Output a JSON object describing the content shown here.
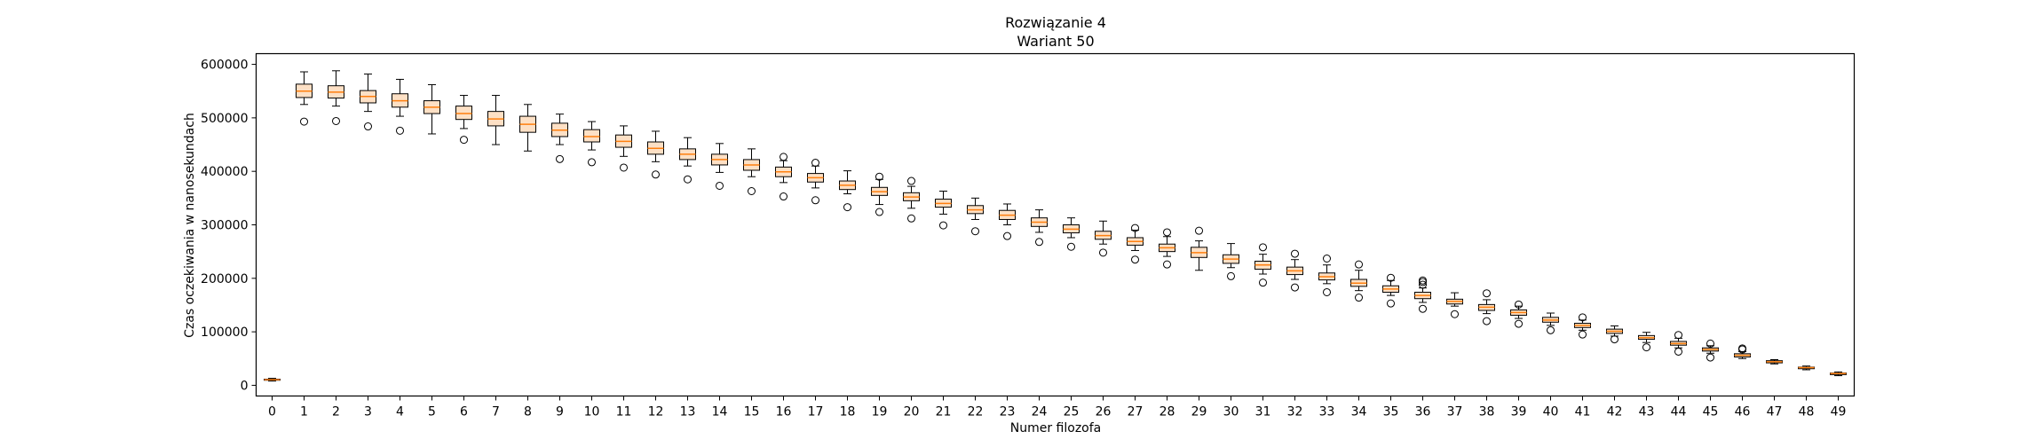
{
  "chart_data": {
    "type": "boxplot",
    "title": "Rozwiązanie 4",
    "subtitle": "Wariant 50",
    "xlabel": "Numer filozofa",
    "ylabel": "Czas oczekiwania w nanosekundach",
    "ylim": [
      -20000,
      620000
    ],
    "yticks": [
      0,
      100000,
      200000,
      300000,
      400000,
      500000,
      600000
    ],
    "ytick_labels": [
      "0",
      "100000",
      "200000",
      "300000",
      "400000",
      "500000",
      "600000"
    ],
    "categories": [
      "0",
      "1",
      "2",
      "3",
      "4",
      "5",
      "6",
      "7",
      "8",
      "9",
      "10",
      "11",
      "12",
      "13",
      "14",
      "15",
      "16",
      "17",
      "18",
      "19",
      "20",
      "21",
      "22",
      "23",
      "24",
      "25",
      "26",
      "27",
      "28",
      "29",
      "30",
      "31",
      "32",
      "33",
      "34",
      "35",
      "36",
      "37",
      "38",
      "39",
      "40",
      "41",
      "42",
      "43",
      "44",
      "45",
      "46",
      "47",
      "48",
      "49"
    ],
    "grid": false,
    "colors": {
      "box_edge": "#000000",
      "median": "#ff7f0e",
      "box_fill": "#fde0c5"
    },
    "boxes": [
      {
        "whislo": 8000,
        "q1": 9500,
        "med": 10500,
        "q3": 11500,
        "whishi": 13000,
        "fliers": []
      },
      {
        "whislo": 525000,
        "q1": 538000,
        "med": 550000,
        "q3": 563000,
        "whishi": 586000,
        "fliers": [
          493000
        ]
      },
      {
        "whislo": 522000,
        "q1": 537000,
        "med": 548000,
        "q3": 560000,
        "whishi": 588000,
        "fliers": [
          494000
        ]
      },
      {
        "whislo": 512000,
        "q1": 528000,
        "med": 540000,
        "q3": 551000,
        "whishi": 582000,
        "fliers": [
          484000
        ]
      },
      {
        "whislo": 503000,
        "q1": 520000,
        "med": 532000,
        "q3": 545000,
        "whishi": 572000,
        "fliers": [
          476000
        ]
      },
      {
        "whislo": 470000,
        "q1": 508000,
        "med": 520000,
        "q3": 532000,
        "whishi": 562000,
        "fliers": []
      },
      {
        "whislo": 480000,
        "q1": 497000,
        "med": 508000,
        "q3": 522000,
        "whishi": 542000,
        "fliers": [
          459000
        ]
      },
      {
        "whislo": 450000,
        "q1": 485000,
        "med": 498000,
        "q3": 512000,
        "whishi": 542000,
        "fliers": []
      },
      {
        "whislo": 438000,
        "q1": 473000,
        "med": 488000,
        "q3": 503000,
        "whishi": 525000,
        "fliers": []
      },
      {
        "whislo": 450000,
        "q1": 465000,
        "med": 477000,
        "q3": 490000,
        "whishi": 507000,
        "fliers": [
          423000
        ]
      },
      {
        "whislo": 440000,
        "q1": 455000,
        "med": 465000,
        "q3": 478000,
        "whishi": 493000,
        "fliers": [
          417000
        ]
      },
      {
        "whislo": 428000,
        "q1": 445000,
        "med": 456000,
        "q3": 468000,
        "whishi": 485000,
        "fliers": [
          407000
        ]
      },
      {
        "whislo": 418000,
        "q1": 432000,
        "med": 443000,
        "q3": 455000,
        "whishi": 475000,
        "fliers": [
          394000
        ]
      },
      {
        "whislo": 410000,
        "q1": 422000,
        "med": 432000,
        "q3": 442000,
        "whishi": 463000,
        "fliers": [
          385000
        ]
      },
      {
        "whislo": 398000,
        "q1": 412000,
        "med": 422000,
        "q3": 432000,
        "whishi": 452000,
        "fliers": [
          373000
        ]
      },
      {
        "whislo": 390000,
        "q1": 402000,
        "med": 412000,
        "q3": 422000,
        "whishi": 442000,
        "fliers": [
          363000
        ]
      },
      {
        "whislo": 379000,
        "q1": 390000,
        "med": 399000,
        "q3": 408000,
        "whishi": 420000,
        "fliers": [
          353000,
          427000
        ]
      },
      {
        "whislo": 369000,
        "q1": 380000,
        "med": 388000,
        "q3": 396000,
        "whishi": 410000,
        "fliers": [
          346000,
          416000
        ]
      },
      {
        "whislo": 358000,
        "q1": 366000,
        "med": 374000,
        "q3": 382000,
        "whishi": 401000,
        "fliers": [
          333000
        ]
      },
      {
        "whislo": 338000,
        "q1": 355000,
        "med": 362000,
        "q3": 370000,
        "whishi": 385000,
        "fliers": [
          324000,
          390000
        ]
      },
      {
        "whislo": 331000,
        "q1": 345000,
        "med": 352000,
        "q3": 360000,
        "whishi": 372000,
        "fliers": [
          312000,
          382000
        ]
      },
      {
        "whislo": 320000,
        "q1": 333000,
        "med": 340000,
        "q3": 348000,
        "whishi": 363000,
        "fliers": [
          299000
        ]
      },
      {
        "whislo": 310000,
        "q1": 321000,
        "med": 328000,
        "q3": 336000,
        "whishi": 350000,
        "fliers": [
          288000
        ]
      },
      {
        "whislo": 300000,
        "q1": 310000,
        "med": 318000,
        "q3": 327000,
        "whishi": 339000,
        "fliers": [
          279000
        ]
      },
      {
        "whislo": 286000,
        "q1": 297000,
        "med": 305000,
        "q3": 313000,
        "whishi": 328000,
        "fliers": [
          268000
        ]
      },
      {
        "whislo": 276000,
        "q1": 285000,
        "med": 292000,
        "q3": 300000,
        "whishi": 313000,
        "fliers": [
          259000
        ]
      },
      {
        "whislo": 264000,
        "q1": 273000,
        "med": 280000,
        "q3": 288000,
        "whishi": 307000,
        "fliers": [
          248000
        ]
      },
      {
        "whislo": 252000,
        "q1": 262000,
        "med": 269000,
        "q3": 276000,
        "whishi": 290000,
        "fliers": [
          235000,
          294000
        ]
      },
      {
        "whislo": 241000,
        "q1": 250000,
        "med": 257000,
        "q3": 264000,
        "whishi": 278000,
        "fliers": [
          226000,
          286000
        ]
      },
      {
        "whislo": 215000,
        "q1": 239000,
        "med": 248000,
        "q3": 258000,
        "whishi": 270000,
        "fliers": [
          289000
        ]
      },
      {
        "whislo": 220000,
        "q1": 228000,
        "med": 236000,
        "q3": 244000,
        "whishi": 265000,
        "fliers": [
          204000
        ]
      },
      {
        "whislo": 208000,
        "q1": 217000,
        "med": 225000,
        "q3": 232000,
        "whishi": 245000,
        "fliers": [
          192000,
          258000
        ]
      },
      {
        "whislo": 198000,
        "q1": 207000,
        "med": 214000,
        "q3": 221000,
        "whishi": 235000,
        "fliers": [
          183000,
          246000
        ]
      },
      {
        "whislo": 190000,
        "q1": 197000,
        "med": 203000,
        "q3": 210000,
        "whishi": 225000,
        "fliers": [
          174000,
          237000
        ]
      },
      {
        "whislo": 177000,
        "q1": 185000,
        "med": 191000,
        "q3": 198000,
        "whishi": 215000,
        "fliers": [
          164000,
          226000
        ]
      },
      {
        "whislo": 168000,
        "q1": 174000,
        "med": 180000,
        "q3": 186000,
        "whishi": 196000,
        "fliers": [
          153000,
          201000
        ]
      },
      {
        "whislo": 155000,
        "q1": 162000,
        "med": 168000,
        "q3": 174000,
        "whishi": 182000,
        "fliers": [
          143000,
          188000,
          193000,
          196000
        ]
      },
      {
        "whislo": 148000,
        "q1": 152000,
        "med": 157000,
        "q3": 161000,
        "whishi": 173000,
        "fliers": [
          133000
        ]
      },
      {
        "whislo": 134000,
        "q1": 140000,
        "med": 146000,
        "q3": 151000,
        "whishi": 160000,
        "fliers": [
          120000,
          172000
        ]
      },
      {
        "whislo": 125000,
        "q1": 131000,
        "med": 136000,
        "q3": 141000,
        "whishi": 148000,
        "fliers": [
          115000,
          151000
        ]
      },
      {
        "whislo": 112000,
        "q1": 118000,
        "med": 122000,
        "q3": 127000,
        "whishi": 135000,
        "fliers": [
          103000
        ]
      },
      {
        "whislo": 103000,
        "q1": 108000,
        "med": 112000,
        "q3": 116000,
        "whishi": 122000,
        "fliers": [
          95000,
          127000
        ]
      },
      {
        "whislo": 92000,
        "q1": 97000,
        "med": 101000,
        "q3": 105000,
        "whishi": 111000,
        "fliers": [
          86000
        ]
      },
      {
        "whislo": 80000,
        "q1": 86000,
        "med": 89000,
        "q3": 93000,
        "whishi": 99000,
        "fliers": [
          71000
        ]
      },
      {
        "whislo": 70000,
        "q1": 75000,
        "med": 78000,
        "q3": 82000,
        "whishi": 88000,
        "fliers": [
          63000,
          94000
        ]
      },
      {
        "whislo": 60000,
        "q1": 64000,
        "med": 67000,
        "q3": 70000,
        "whishi": 74000,
        "fliers": [
          52000,
          78000
        ]
      },
      {
        "whislo": 50000,
        "q1": 53000,
        "med": 56000,
        "q3": 59000,
        "whishi": 63000,
        "fliers": [
          67000,
          69000
        ]
      },
      {
        "whislo": 40000,
        "q1": 42000,
        "med": 44000,
        "q3": 46000,
        "whishi": 48000,
        "fliers": []
      },
      {
        "whislo": 29000,
        "q1": 31000,
        "med": 33000,
        "q3": 34000,
        "whishi": 36000,
        "fliers": []
      },
      {
        "whislo": 18000,
        "q1": 20000,
        "med": 22000,
        "q3": 23000,
        "whishi": 25000,
        "fliers": []
      }
    ]
  }
}
